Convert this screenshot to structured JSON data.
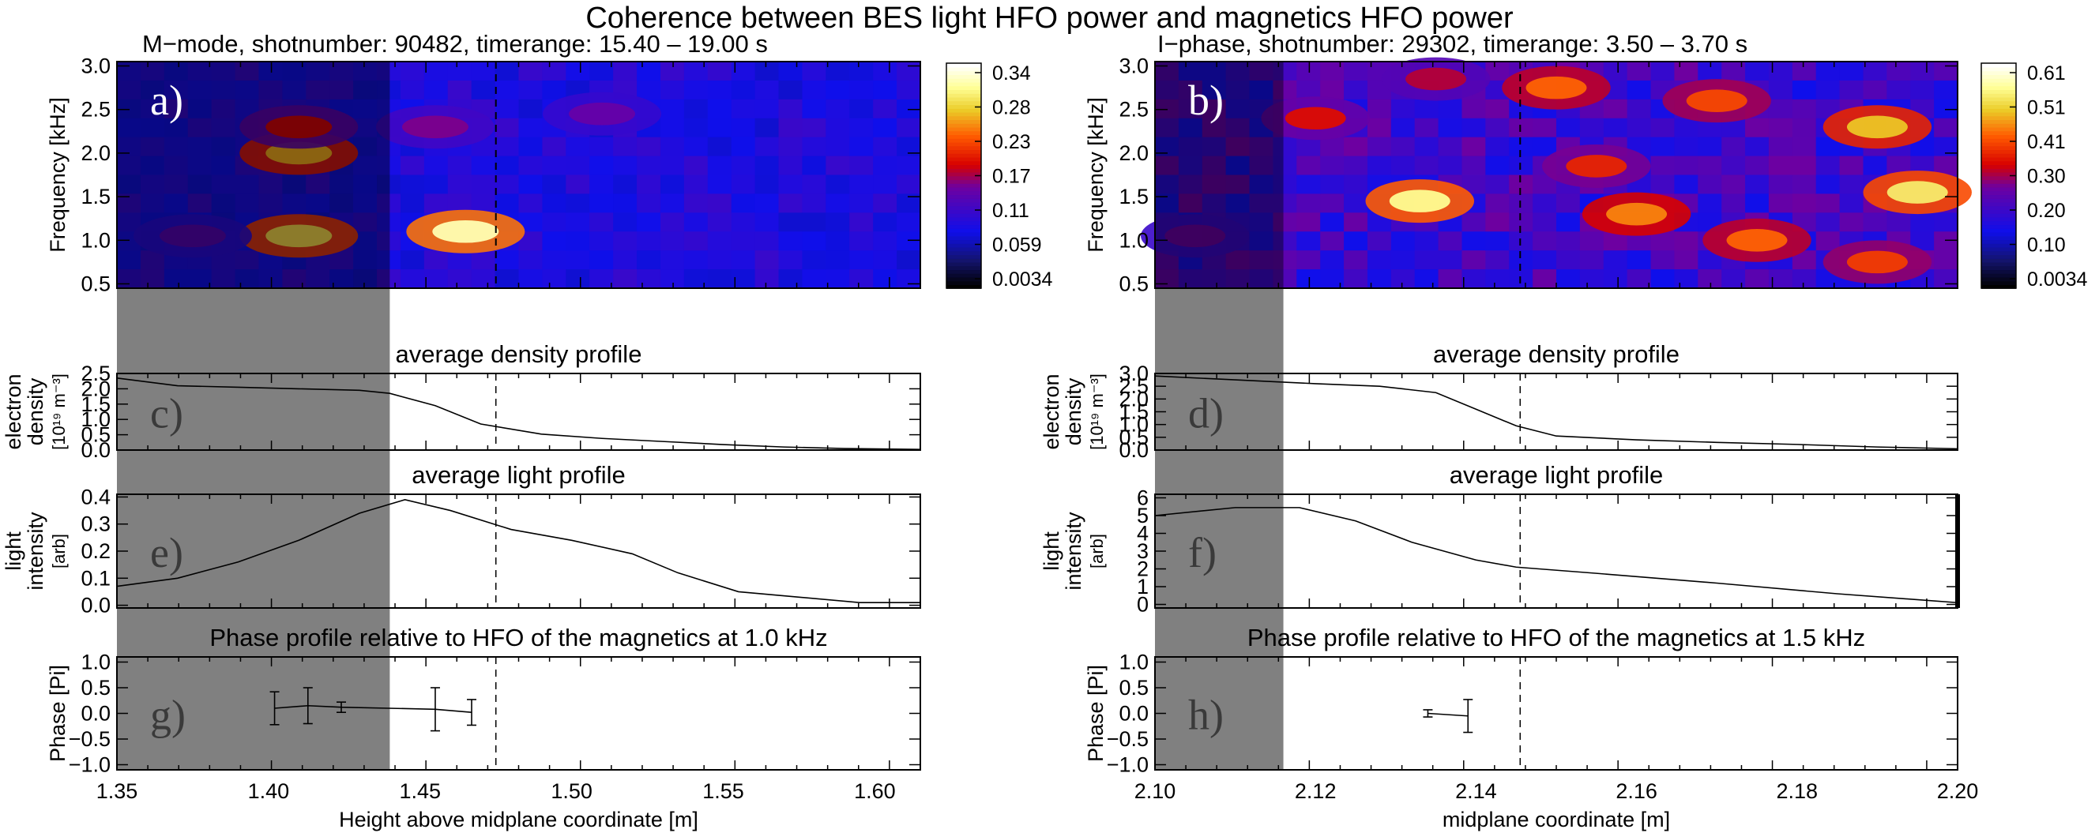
{
  "suptitle": "Coherence between BES light HFO power and magnetics HFO power",
  "chart_data": [
    {
      "type": "heatmap",
      "panel": "a)",
      "title": "M−mode, shotnumber: 90482, timerange: 15.40 – 19.00 s",
      "xlim": [
        1.35,
        1.615
      ],
      "ylim": [
        0.45,
        3.05
      ],
      "ylabel": "Frequency [kHz]",
      "yticks": [
        "0.5",
        "1.0",
        "1.5",
        "2.0",
        "2.5",
        "3.0"
      ],
      "colorbar_ticks": [
        "0.0034",
        "0.059",
        "0.11",
        "0.17",
        "0.23",
        "0.28",
        "0.34"
      ],
      "shaded_region": [
        1.35,
        1.44
      ],
      "dashed_x": 1.475,
      "hotspots": [
        {
          "x": 1.41,
          "y": 1.05,
          "value": 0.27
        },
        {
          "x": 1.465,
          "y": 1.1,
          "value": 0.3
        },
        {
          "x": 1.41,
          "y": 2.0,
          "value": 0.25
        },
        {
          "x": 1.41,
          "y": 2.3,
          "value": 0.18
        },
        {
          "x": 1.455,
          "y": 2.3,
          "value": 0.15
        },
        {
          "x": 1.51,
          "y": 2.45,
          "value": 0.14
        },
        {
          "x": 1.375,
          "y": 1.05,
          "value": 0.13
        }
      ]
    },
    {
      "type": "heatmap",
      "panel": "b)",
      "title": "I−phase, shotnumber: 29302, timerange:  3.50 –  3.70 s",
      "xlim": [
        2.1,
        2.2
      ],
      "ylim": [
        0.45,
        3.05
      ],
      "ylabel": "Frequency [kHz]",
      "yticks": [
        "0.5",
        "1.0",
        "1.5",
        "2.0",
        "2.5",
        "3.0"
      ],
      "colorbar_ticks": [
        "0.0034",
        "0.10",
        "0.20",
        "0.30",
        "0.41",
        "0.51",
        "0.61"
      ],
      "shaded_region": [
        2.1,
        2.116
      ],
      "dashed_x": 2.1455,
      "hotspots": [
        {
          "x": 2.133,
          "y": 1.45,
          "value": 0.52
        },
        {
          "x": 2.195,
          "y": 1.55,
          "value": 0.5
        },
        {
          "x": 2.19,
          "y": 2.3,
          "value": 0.46
        },
        {
          "x": 2.16,
          "y": 1.3,
          "value": 0.42
        },
        {
          "x": 2.15,
          "y": 2.75,
          "value": 0.4
        },
        {
          "x": 2.17,
          "y": 2.6,
          "value": 0.38
        },
        {
          "x": 2.12,
          "y": 2.4,
          "value": 0.33
        },
        {
          "x": 2.175,
          "y": 1.0,
          "value": 0.4
        },
        {
          "x": 2.19,
          "y": 0.75,
          "value": 0.37
        },
        {
          "x": 2.155,
          "y": 1.85,
          "value": 0.35
        },
        {
          "x": 2.135,
          "y": 2.85,
          "value": 0.3
        },
        {
          "x": 2.105,
          "y": 1.05,
          "value": 0.26
        }
      ]
    },
    {
      "type": "line",
      "panel": "c)",
      "title": "average density profile",
      "ylabel": [
        "electron",
        "density",
        "[10¹⁹ m⁻³]"
      ],
      "xlim": [
        1.35,
        1.615
      ],
      "ylim": [
        0.0,
        2.5
      ],
      "yticks": [
        "0.0",
        "0.5",
        "1.0",
        "1.5",
        "2.0",
        "2.5"
      ],
      "shaded_region": [
        1.35,
        1.44
      ],
      "dashed_x": 1.475,
      "x": [
        1.35,
        1.37,
        1.39,
        1.41,
        1.43,
        1.44,
        1.455,
        1.47,
        1.49,
        1.51,
        1.53,
        1.55,
        1.57,
        1.59,
        1.615
      ],
      "y": [
        2.35,
        2.1,
        2.05,
        2.0,
        1.95,
        1.85,
        1.45,
        0.85,
        0.52,
        0.38,
        0.28,
        0.18,
        0.1,
        0.05,
        0.02
      ]
    },
    {
      "type": "line",
      "panel": "d)",
      "title": "average density profile",
      "ylabel": [
        "electron",
        "density",
        "[10¹⁹ m⁻³]"
      ],
      "xlim": [
        2.1,
        2.2
      ],
      "ylim": [
        0.0,
        3.0
      ],
      "yticks": [
        "0.0",
        "0.5",
        "1.0",
        "1.5",
        "2.0",
        "2.5",
        "3.0"
      ],
      "shaded_region": [
        2.1,
        2.116
      ],
      "dashed_x": 2.1455,
      "x": [
        2.1,
        2.11,
        2.12,
        2.128,
        2.135,
        2.14,
        2.145,
        2.15,
        2.16,
        2.17,
        2.18,
        2.19,
        2.2
      ],
      "y": [
        2.9,
        2.75,
        2.6,
        2.5,
        2.25,
        1.6,
        0.95,
        0.55,
        0.4,
        0.3,
        0.22,
        0.12,
        0.05
      ]
    },
    {
      "type": "line",
      "panel": "e)",
      "title": "average light profile",
      "ylabel": [
        "light",
        "intensity",
        "[arb]"
      ],
      "xlim": [
        1.35,
        1.615
      ],
      "ylim": [
        -0.01,
        0.41
      ],
      "yticks": [
        "0.0",
        "0.1",
        "0.2",
        "0.3",
        "0.4"
      ],
      "shaded_region": [
        1.35,
        1.44
      ],
      "dashed_x": 1.475,
      "x": [
        1.35,
        1.37,
        1.39,
        1.41,
        1.43,
        1.445,
        1.46,
        1.48,
        1.5,
        1.52,
        1.535,
        1.555,
        1.575,
        1.595,
        1.615
      ],
      "y": [
        0.07,
        0.1,
        0.16,
        0.24,
        0.34,
        0.39,
        0.35,
        0.28,
        0.24,
        0.19,
        0.12,
        0.05,
        0.03,
        0.01,
        0.01
      ]
    },
    {
      "type": "line",
      "panel": "f)",
      "title": "average light profile",
      "ylabel": [
        "light",
        "intensity",
        "[arb]"
      ],
      "xlim": [
        2.1,
        2.2
      ],
      "ylim": [
        -0.2,
        6.2
      ],
      "yticks": [
        "0",
        "1",
        "2",
        "3",
        "4",
        "5",
        "6"
      ],
      "shaded_region": [
        2.1,
        2.116
      ],
      "dashed_x": 2.1455,
      "x": [
        2.1,
        2.11,
        2.118,
        2.125,
        2.132,
        2.14,
        2.145,
        2.155,
        2.17,
        2.185,
        2.2
      ],
      "y": [
        5.0,
        5.45,
        5.45,
        4.7,
        3.5,
        2.5,
        2.1,
        1.75,
        1.2,
        0.6,
        0.1
      ]
    },
    {
      "type": "line",
      "panel": "g)",
      "title": "Phase profile relative to HFO of the magnetics at 1.0 kHz",
      "ylabel": [
        "Phase [Pi]"
      ],
      "xlabel": "Height above midplane coordinate [m]",
      "xlim": [
        1.35,
        1.615
      ],
      "ylim": [
        -1.1,
        1.1
      ],
      "yticks": [
        "−1.0",
        "−0.5",
        "0.0",
        "0.5",
        "1.0"
      ],
      "xticks": [
        "1.35",
        "1.40",
        "1.45",
        "1.50",
        "1.55",
        "1.60"
      ],
      "shaded_region": [
        1.35,
        1.44
      ],
      "dashed_x": 1.475,
      "x": [
        1.402,
        1.413,
        1.424,
        1.455,
        1.467
      ],
      "y": [
        0.1,
        0.15,
        0.12,
        0.08,
        0.02
      ],
      "err": [
        0.32,
        0.35,
        0.1,
        0.42,
        0.25
      ]
    },
    {
      "type": "line",
      "panel": "h)",
      "title": "Phase profile relative to HFO of the magnetics at 1.5 kHz",
      "ylabel": [
        "Phase [Pi]"
      ],
      "xlabel": "midplane coordinate [m]",
      "xlim": [
        2.1,
        2.2
      ],
      "ylim": [
        -1.1,
        1.1
      ],
      "yticks": [
        "−1.0",
        "−0.5",
        "0.0",
        "0.5",
        "1.0"
      ],
      "xticks": [
        "2.10",
        "2.12",
        "2.14",
        "2.16",
        "2.18",
        "2.20"
      ],
      "shaded_region": [
        2.1,
        2.116
      ],
      "dashed_x": 2.1455,
      "x": [
        2.134,
        2.139
      ],
      "y": [
        0.0,
        -0.05
      ],
      "err": [
        0.07,
        0.32
      ]
    }
  ]
}
